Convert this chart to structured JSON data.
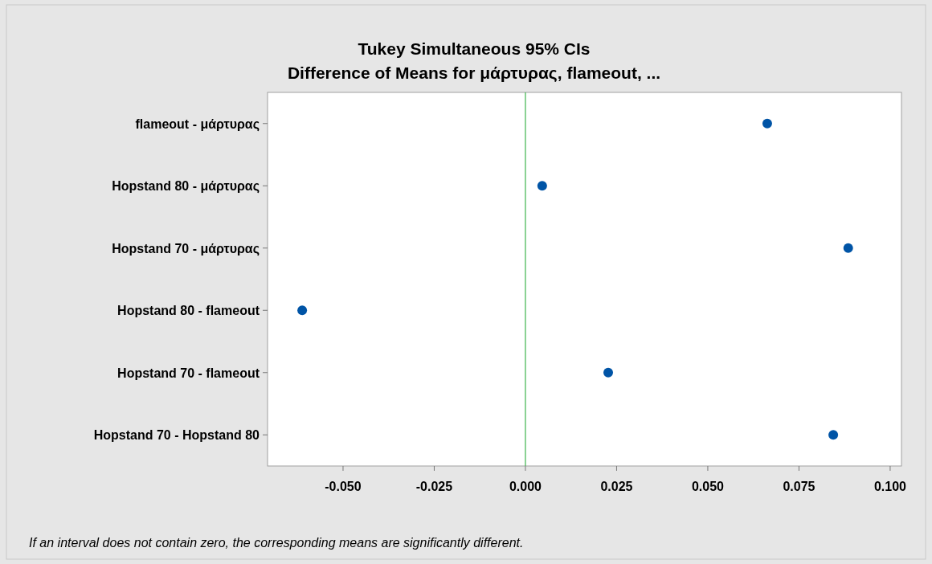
{
  "chart_data": {
    "type": "scatter",
    "orientation": "horizontal",
    "title": "Tukey Simultaneous 95% CIs",
    "subtitle": "Difference of Means for μάρτυρας, flameout, ...",
    "categories": [
      "flameout - μάρτυρας",
      "Hopstand 80 - μάρτυρας",
      "Hopstand 70 - μάρτυρας",
      "Hopstand 80 - flameout",
      "Hopstand 70 - flameout",
      "Hopstand 70 - Hopstand 80"
    ],
    "series": [
      {
        "color": "#0054a6",
        "values": [
          0.0663,
          0.0046,
          0.0885,
          -0.0612,
          0.0227,
          0.0844
        ]
      }
    ],
    "xlim": [
      -0.0707,
      0.1031
    ],
    "xticks": [
      {
        "value": -0.05,
        "label": "-0.050"
      },
      {
        "value": -0.025,
        "label": "-0.025"
      },
      {
        "value": 0,
        "label": "0.000"
      },
      {
        "value": 0.025,
        "label": "0.025"
      },
      {
        "value": 0.05,
        "label": "0.050"
      },
      {
        "value": 0.075,
        "label": "0.075"
      },
      {
        "value": 0.1,
        "label": "0.100"
      }
    ],
    "ref_lines": [
      {
        "axis": "x",
        "value": 0,
        "color": "#3cb44b"
      }
    ],
    "marker": "circle",
    "grid": false,
    "annotations": [
      "If an interval does not contain zero, the corresponding means are significantly different."
    ]
  }
}
